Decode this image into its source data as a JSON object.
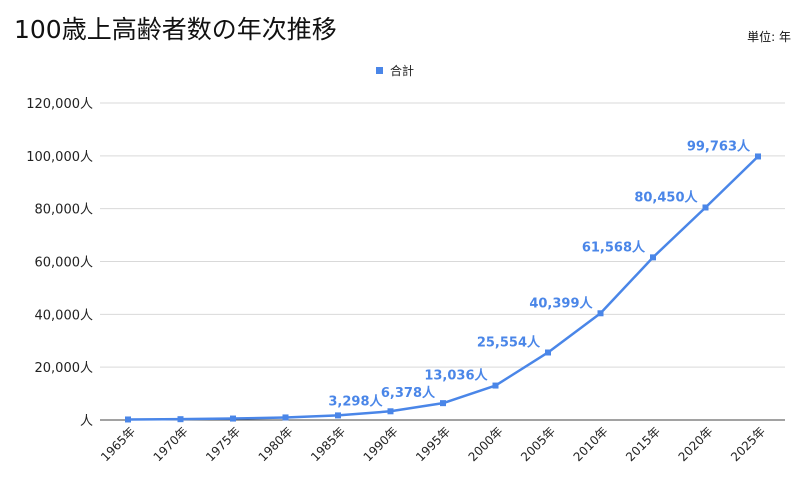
{
  "title": "100歳上高齢者数の年次推移",
  "unit_label": "単位: 年",
  "colors": {
    "series": "#4a86e8",
    "grid": "#d9d9d9",
    "text": "#222222"
  },
  "chart_data": {
    "type": "line",
    "title": "100歳上高齢者数の年次推移",
    "xlabel": "",
    "ylabel": "",
    "categories": [
      "1965年",
      "1970年",
      "1975年",
      "1980年",
      "1985年",
      "1990年",
      "1995年",
      "2000年",
      "2005年",
      "2010年",
      "2015年",
      "2020年",
      "2025年"
    ],
    "series": [
      {
        "name": "合計",
        "values": [
          198,
          310,
          548,
          968,
          1740,
          3298,
          6378,
          13036,
          25554,
          40399,
          61568,
          80450,
          99763
        ],
        "data_labels": [
          "",
          "",
          "",
          "",
          "",
          "3,298人",
          "6,378人",
          "13,036人",
          "25,554人",
          "40,399人",
          "61,568人",
          "80,450人",
          "99,763人"
        ]
      }
    ],
    "ylim": [
      0,
      120000
    ],
    "yticks": [
      0,
      20000,
      40000,
      60000,
      80000,
      100000,
      120000
    ],
    "ytick_labels": [
      "人",
      "20,000人",
      "40,000人",
      "60,000人",
      "80,000人",
      "100,000人",
      "120,000人"
    ],
    "grid": true,
    "legend": "top-center"
  }
}
